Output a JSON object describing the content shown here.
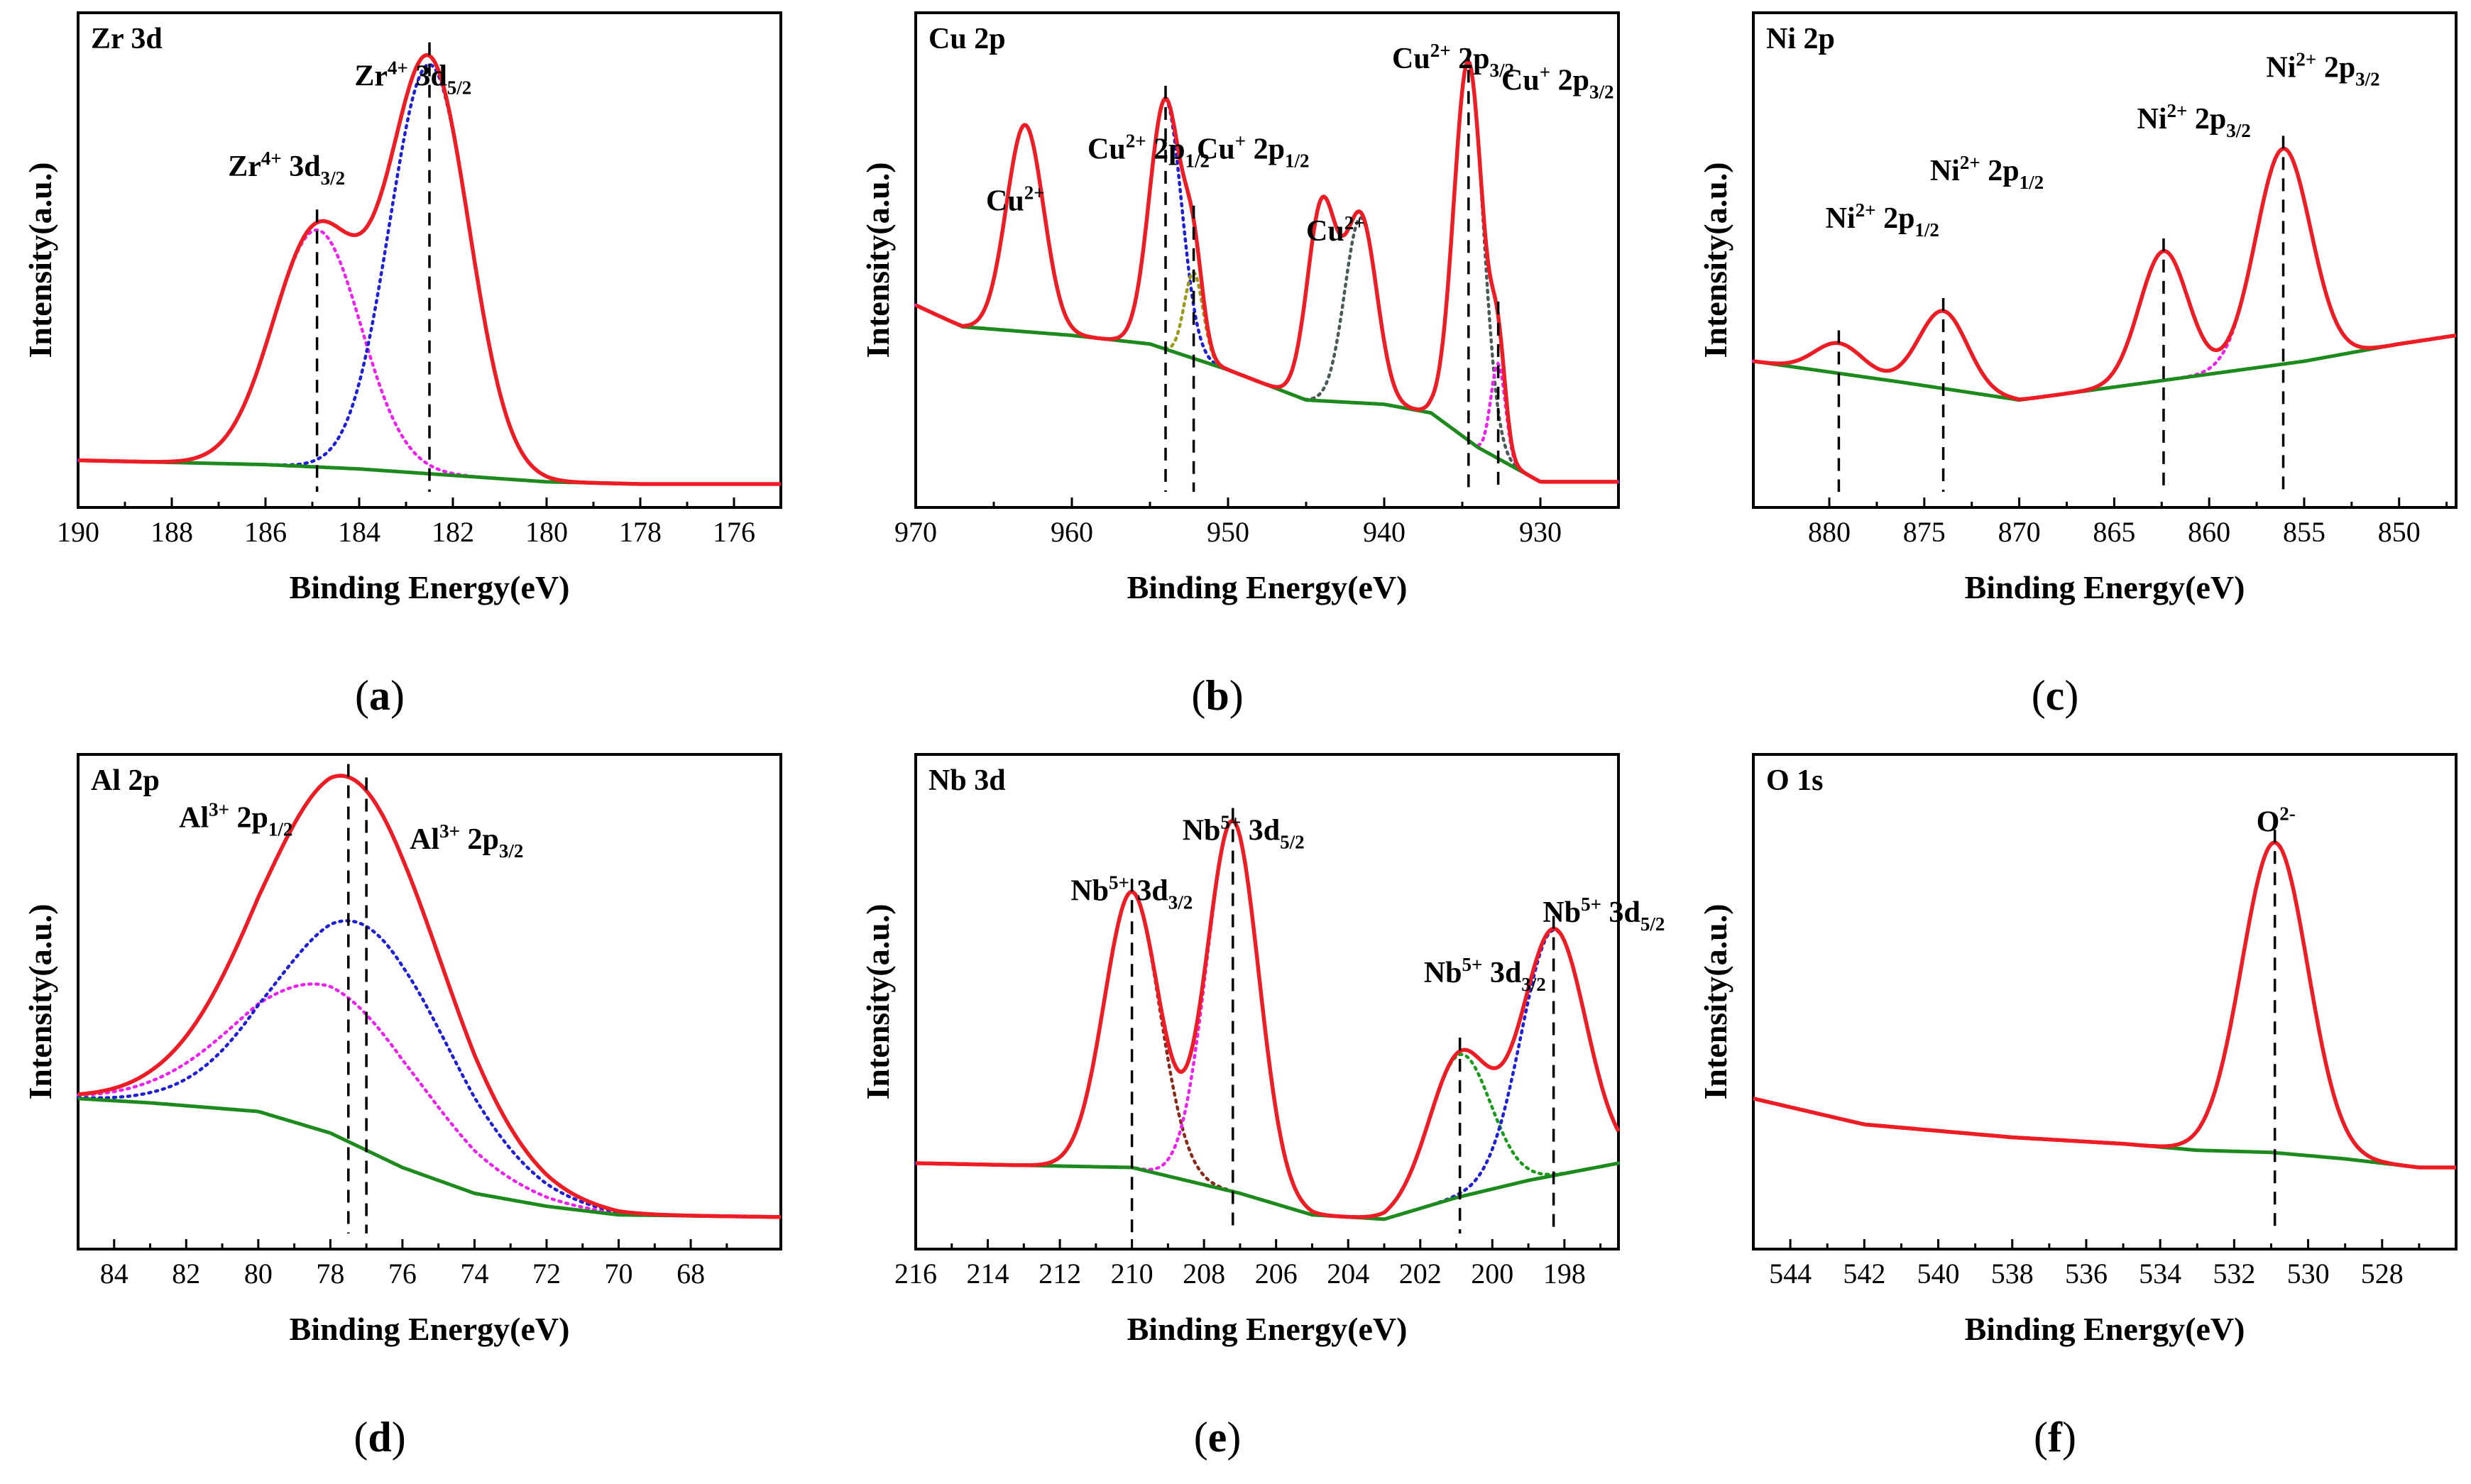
{
  "figure": {
    "xlabel": "Binding Energy(eV)",
    "ylabel": "Intensity(a.u.)"
  },
  "colors": {
    "envelope": "#ee1c25",
    "background": "#1d8a1d",
    "blue": "#1f1fd6",
    "magenta": "#ee22ee",
    "green_dot": "#1a9a1a",
    "olive": "#9a9a1a",
    "purple": "#7a22cc",
    "brown": "#8a2a1a",
    "darkslate": "#4a5a5a"
  },
  "chart_data": [
    {
      "panel": "a",
      "caption_letter": "a",
      "title": "Zr 3d",
      "type": "line",
      "xlim": [
        190,
        175
      ],
      "ylim": [
        0,
        100
      ],
      "xticks": [
        190,
        188,
        186,
        184,
        182,
        180,
        178,
        176
      ],
      "background": [
        [
          190,
          6
        ],
        [
          186,
          5
        ],
        [
          184,
          4
        ],
        [
          182,
          2.5
        ],
        [
          180,
          1
        ],
        [
          178,
          0.5
        ],
        [
          175,
          0.5
        ]
      ],
      "peaks": [
        {
          "center": 184.9,
          "height": 55,
          "fwhm": 2.2,
          "color": "magenta"
        },
        {
          "center": 182.5,
          "height": 95,
          "fwhm": 2.0,
          "color": "blue"
        }
      ],
      "markers": [
        184.9,
        182.5
      ],
      "labels": [
        {
          "main": "Zr",
          "sup": "4+",
          "mid": " 3d",
          "sub": "3/2",
          "x": 186.8,
          "y": 72
        },
        {
          "main": "Zr",
          "sup": "4+",
          "mid": " 3d",
          "sub": "5/2",
          "x": 184.1,
          "y": 93
        }
      ]
    },
    {
      "panel": "b",
      "caption_letter": "b",
      "title": "Cu 2p",
      "type": "line",
      "xlim": [
        970,
        925
      ],
      "ylim": [
        0,
        100
      ],
      "xticks": [
        970,
        960,
        950,
        940,
        930
      ],
      "background": [
        [
          970,
          42
        ],
        [
          967,
          37
        ],
        [
          960,
          35
        ],
        [
          955,
          33
        ],
        [
          950,
          27
        ],
        [
          945,
          20
        ],
        [
          940,
          19
        ],
        [
          937,
          17
        ],
        [
          934,
          9
        ],
        [
          930,
          1
        ],
        [
          925,
          1
        ]
      ],
      "peaks": [
        {
          "center": 963,
          "height": 48,
          "fwhm": 2.8,
          "color": "none"
        },
        {
          "center": 954,
          "height": 58,
          "fwhm": 2.4,
          "color": "blue"
        },
        {
          "center": 952.2,
          "height": 20,
          "fwhm": 1.4,
          "color": "olive"
        },
        {
          "center": 944,
          "height": 45,
          "fwhm": 2.2,
          "color": "none"
        },
        {
          "center": 941.5,
          "height": 43,
          "fwhm": 2.4,
          "color": "darkslate"
        },
        {
          "center": 934.6,
          "height": 88,
          "fwhm": 2.2,
          "color": "darkslate"
        },
        {
          "center": 932.7,
          "height": 22,
          "fwhm": 1.1,
          "color": "magenta"
        }
      ],
      "markers": [
        954,
        952.2,
        934.6,
        932.7
      ],
      "labels": [
        {
          "main": "Cu",
          "sup": "2+",
          "mid": "",
          "sub": "",
          "x": 965.5,
          "y": 64
        },
        {
          "main": "Cu",
          "sup": "2+",
          "mid": " 2p",
          "sub": "1/2",
          "x": 959,
          "y": 76
        },
        {
          "main": "Cu",
          "sup": "+",
          "mid": " 2p",
          "sub": "1/2",
          "x": 952,
          "y": 76
        },
        {
          "main": "Cu",
          "sup": "2+",
          "mid": "",
          "sub": "",
          "x": 945,
          "y": 57
        },
        {
          "main": "Cu",
          "sup": "2+",
          "mid": " 2p",
          "sub": "3/2",
          "x": 939.5,
          "y": 97
        },
        {
          "main": "Cu",
          "sup": "+",
          "mid": " 2p",
          "sub": "3/2",
          "x": 932.5,
          "y": 92
        }
      ]
    },
    {
      "panel": "c",
      "caption_letter": "c",
      "title": "Ni 2p",
      "type": "line",
      "xlim": [
        884,
        847
      ],
      "ylim": [
        0,
        100
      ],
      "xticks": [
        880,
        875,
        870,
        865,
        860,
        855,
        850
      ],
      "background": [
        [
          884,
          29
        ],
        [
          876,
          24
        ],
        [
          870,
          20
        ],
        [
          860,
          26
        ],
        [
          855,
          29
        ],
        [
          850,
          33
        ],
        [
          847,
          35
        ]
      ],
      "peaks": [
        {
          "center": 879.5,
          "height": 7,
          "fwhm": 3.0,
          "color": "none"
        },
        {
          "center": 874,
          "height": 18,
          "fwhm": 3.0,
          "color": "none"
        },
        {
          "center": 862.4,
          "height": 30,
          "fwhm": 3.0,
          "color": "none"
        },
        {
          "center": 856.1,
          "height": 50,
          "fwhm": 3.4,
          "color": "magenta"
        }
      ],
      "markers": [
        879.5,
        874,
        862.4,
        856.1
      ],
      "labels": [
        {
          "main": "Ni",
          "sup": "2+",
          "mid": " 2p",
          "sub": "1/2",
          "x": 880.2,
          "y": 60
        },
        {
          "main": "Ni",
          "sup": "2+",
          "mid": " 2p",
          "sub": "1/2",
          "x": 874.7,
          "y": 71
        },
        {
          "main": "Ni",
          "sup": "2+",
          "mid": " 2p",
          "sub": "3/2",
          "x": 863.8,
          "y": 83
        },
        {
          "main": "Ni",
          "sup": "2+",
          "mid": " 2p",
          "sub": "3/2",
          "x": 857,
          "y": 95
        }
      ]
    },
    {
      "panel": "d",
      "caption_letter": "d",
      "title": "Al 2p",
      "type": "line",
      "xlim": [
        85,
        65.5
      ],
      "ylim": [
        0,
        100
      ],
      "xticks": [
        84,
        82,
        80,
        78,
        76,
        74,
        72,
        70,
        68
      ],
      "background": [
        [
          85,
          30
        ],
        [
          83,
          29
        ],
        [
          80,
          27
        ],
        [
          78,
          22
        ],
        [
          76,
          14
        ],
        [
          74,
          8
        ],
        [
          72,
          5
        ],
        [
          70,
          3
        ],
        [
          65.5,
          2.5
        ]
      ],
      "peaks": [
        {
          "center": 78,
          "height": 34,
          "fwhm": 6.0,
          "color": "magenta"
        },
        {
          "center": 77.1,
          "height": 52,
          "fwhm": 5.6,
          "color": "blue"
        }
      ],
      "markers": [
        77.5,
        77.0
      ],
      "labels": [
        {
          "main": "Al",
          "sup": "3+",
          "mid": " 2p",
          "sub": "1/2",
          "x": 82.2,
          "y": 93
        },
        {
          "main": "Al",
          "sup": "3+",
          "mid": " 2p",
          "sub": "3/2",
          "x": 75.8,
          "y": 88
        }
      ]
    },
    {
      "panel": "e",
      "caption_letter": "e",
      "title": "Nb 3d",
      "type": "line",
      "xlim": [
        216,
        196.5
      ],
      "ylim": [
        0,
        100
      ],
      "xticks": [
        216,
        214,
        212,
        210,
        208,
        206,
        204,
        202,
        200,
        198
      ],
      "background": [
        [
          216,
          15
        ],
        [
          210,
          14
        ],
        [
          207,
          8
        ],
        [
          205,
          3
        ],
        [
          203,
          2
        ],
        [
          201,
          7
        ],
        [
          199,
          11
        ],
        [
          196.5,
          15
        ]
      ],
      "peaks": [
        {
          "center": 210,
          "height": 64,
          "fwhm": 1.8,
          "color": "brown"
        },
        {
          "center": 207.2,
          "height": 86,
          "fwhm": 1.7,
          "color": "magenta"
        },
        {
          "center": 200.9,
          "height": 33,
          "fwhm": 2.0,
          "color": "green_dot"
        },
        {
          "center": 198.3,
          "height": 57,
          "fwhm": 2.1,
          "color": "blue"
        }
      ],
      "markers": [
        210,
        207.2,
        200.9,
        198.3
      ],
      "labels": [
        {
          "main": "Nb",
          "sup": "5+",
          "mid": " 3d",
          "sub": "3/2",
          "x": 211.7,
          "y": 76
        },
        {
          "main": "Nb",
          "sup": "5+",
          "mid": " 3d",
          "sub": "5/2",
          "x": 208.6,
          "y": 90
        },
        {
          "main": "Nb",
          "sup": "5+",
          "mid": " 3d",
          "sub": "3/2",
          "x": 201.9,
          "y": 57
        },
        {
          "main": "Nb",
          "sup": "5+",
          "mid": " 3d",
          "sub": "5/2",
          "x": 198.6,
          "y": 71
        }
      ]
    },
    {
      "panel": "f",
      "caption_letter": "f",
      "title": "O 1s",
      "type": "line",
      "xlim": [
        545,
        526
      ],
      "ylim": [
        0,
        100
      ],
      "xticks": [
        544,
        542,
        540,
        538,
        536,
        534,
        532,
        530,
        528
      ],
      "background": [
        [
          545,
          30
        ],
        [
          542,
          24
        ],
        [
          538,
          21
        ],
        [
          535,
          19.5
        ],
        [
          533,
          18
        ],
        [
          531,
          17.5
        ],
        [
          529,
          16
        ],
        [
          527,
          14
        ],
        [
          526,
          14
        ]
      ],
      "peaks": [
        {
          "center": 530.9,
          "height": 72,
          "fwhm": 2.1,
          "color": "none"
        }
      ],
      "markers": [
        530.9
      ],
      "labels": [
        {
          "main": "O",
          "sup": "2-",
          "mid": "",
          "sub": "",
          "x": 531.4,
          "y": 92
        }
      ]
    }
  ]
}
